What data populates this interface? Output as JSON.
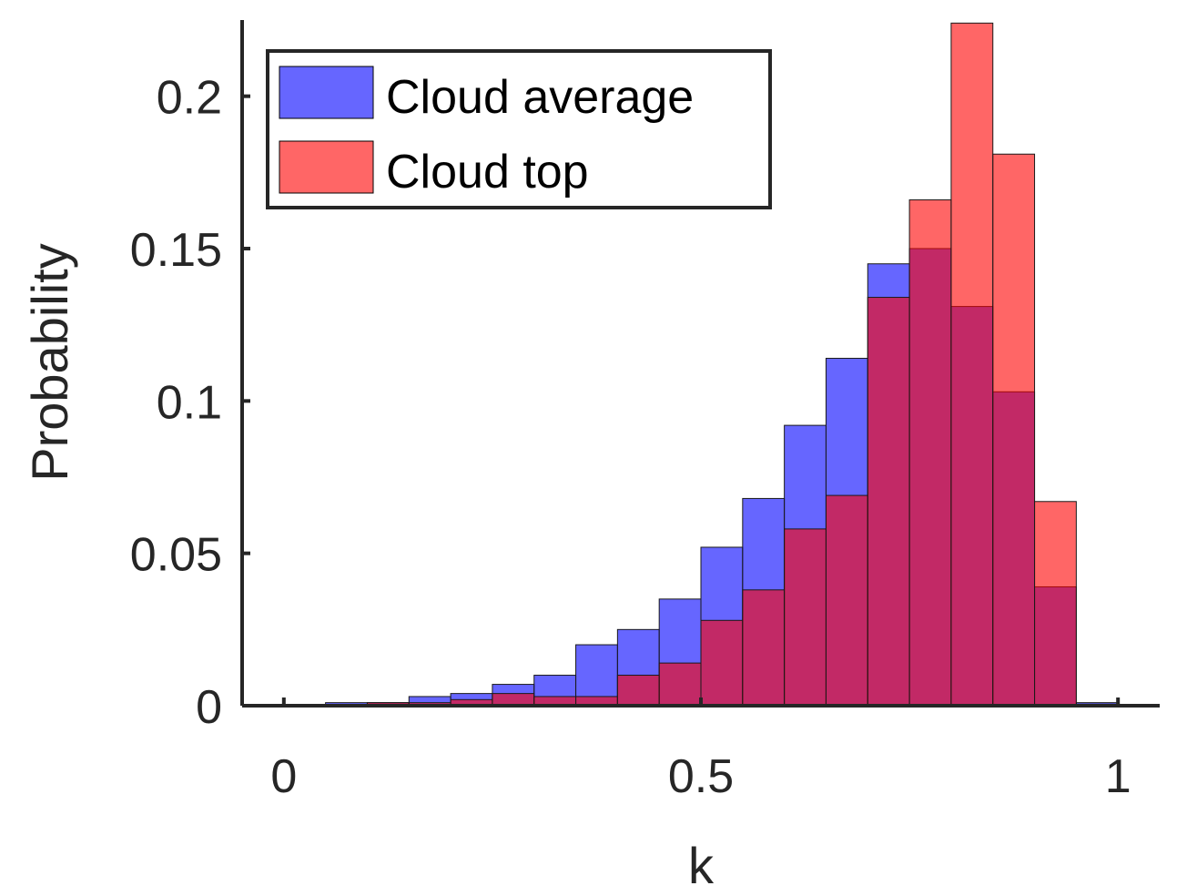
{
  "chart_data": {
    "type": "bar",
    "subtype": "overlapping-histogram",
    "xlabel": "k",
    "ylabel": "Probability",
    "xlim": [
      -0.05,
      1.05
    ],
    "ylim": [
      0,
      0.225
    ],
    "bin_width": 0.05,
    "x": [
      0.025,
      0.075,
      0.125,
      0.175,
      0.225,
      0.275,
      0.325,
      0.375,
      0.425,
      0.475,
      0.525,
      0.575,
      0.625,
      0.675,
      0.725,
      0.775,
      0.825,
      0.875,
      0.925,
      0.975
    ],
    "xticks": [
      0,
      0.5,
      1
    ],
    "xtick_labels": [
      "0",
      "0.5",
      "1"
    ],
    "yticks": [
      0,
      0.05,
      0.1,
      0.15,
      0.2
    ],
    "ytick_labels": [
      "0",
      "0.05",
      "0.1",
      "0.15",
      "0.2"
    ],
    "legend_position": "top-left",
    "grid": false,
    "series": [
      {
        "name": "Cloud average",
        "color": "#0000ff",
        "opacity": 0.6,
        "values": [
          0.0003,
          0.001,
          0.001,
          0.003,
          0.004,
          0.007,
          0.01,
          0.02,
          0.025,
          0.035,
          0.052,
          0.068,
          0.092,
          0.114,
          0.145,
          0.15,
          0.131,
          0.103,
          0.039,
          0.001
        ]
      },
      {
        "name": "Cloud top",
        "color": "#ff0000",
        "opacity": 0.6,
        "values": [
          0.0001,
          0.0004,
          0.001,
          0.001,
          0.002,
          0.004,
          0.003,
          0.003,
          0.01,
          0.014,
          0.028,
          0.038,
          0.058,
          0.069,
          0.134,
          0.166,
          0.224,
          0.181,
          0.067,
          0.0005
        ]
      }
    ]
  }
}
